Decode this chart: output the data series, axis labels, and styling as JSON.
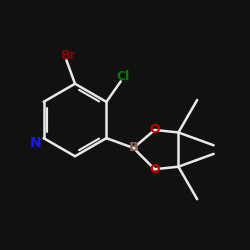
{
  "bg_color": "#111111",
  "bond_color": "#e8e8e8",
  "bond_width": 1.8,
  "atom_colors": {
    "N": "#1818ff",
    "Br": "#8b0000",
    "Cl": "#008000",
    "B": "#8b6355",
    "O": "#cc0000",
    "C": "#e8e8e8"
  },
  "fs": 9.5,
  "fs_br": 9.0,
  "fs_cl": 9.0,
  "fs_b": 9.5,
  "fs_o": 9.0,
  "fs_n": 10.0
}
